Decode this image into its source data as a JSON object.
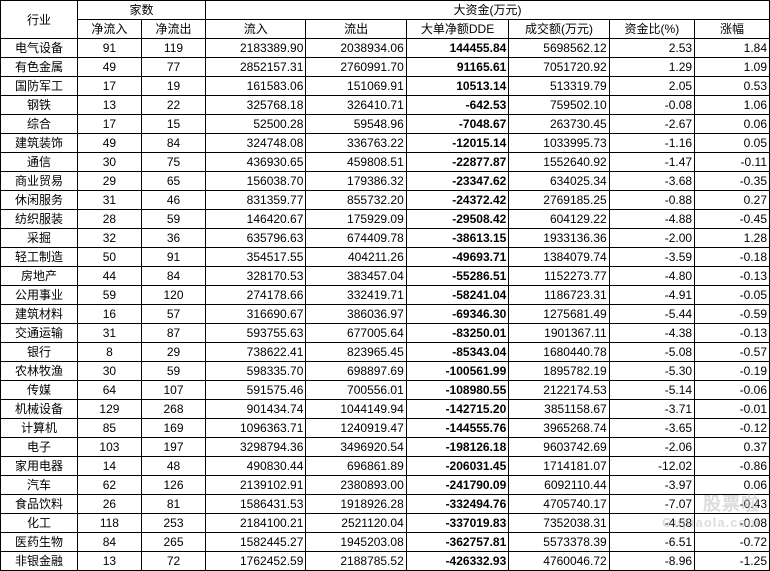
{
  "headers": {
    "group1": "家数",
    "group2": "大资金(万元)",
    "industry": "行业",
    "netIn": "净流入",
    "netOut": "净流出",
    "flowIn": "流入",
    "flowOut": "流出",
    "dde": "大单净额DDE",
    "turnover": "成交额(万元)",
    "ratio": "资金比(%)",
    "change": "涨幅"
  },
  "rows": [
    {
      "industry": "电气设备",
      "netIn": "91",
      "netOut": "119",
      "flowIn": "2183389.90",
      "flowOut": "2038934.06",
      "dde": "144455.84",
      "turnover": "5698562.12",
      "ratio": "2.53",
      "change": "1.84"
    },
    {
      "industry": "有色金属",
      "netIn": "49",
      "netOut": "77",
      "flowIn": "2852157.31",
      "flowOut": "2760991.70",
      "dde": "91165.61",
      "turnover": "7051720.92",
      "ratio": "1.29",
      "change": "1.09"
    },
    {
      "industry": "国防军工",
      "netIn": "17",
      "netOut": "19",
      "flowIn": "161583.06",
      "flowOut": "151069.91",
      "dde": "10513.14",
      "turnover": "513319.79",
      "ratio": "2.05",
      "change": "0.53"
    },
    {
      "industry": "钢铁",
      "netIn": "13",
      "netOut": "22",
      "flowIn": "325768.18",
      "flowOut": "326410.71",
      "dde": "-642.53",
      "turnover": "759502.10",
      "ratio": "-0.08",
      "change": "1.06"
    },
    {
      "industry": "综合",
      "netIn": "17",
      "netOut": "15",
      "flowIn": "52500.28",
      "flowOut": "59548.96",
      "dde": "-7048.67",
      "turnover": "263730.45",
      "ratio": "-2.67",
      "change": "0.06"
    },
    {
      "industry": "建筑装饰",
      "netIn": "49",
      "netOut": "84",
      "flowIn": "324748.08",
      "flowOut": "336763.22",
      "dde": "-12015.14",
      "turnover": "1033995.73",
      "ratio": "-1.16",
      "change": "0.05"
    },
    {
      "industry": "通信",
      "netIn": "30",
      "netOut": "75",
      "flowIn": "436930.65",
      "flowOut": "459808.51",
      "dde": "-22877.87",
      "turnover": "1552640.92",
      "ratio": "-1.47",
      "change": "-0.11"
    },
    {
      "industry": "商业贸易",
      "netIn": "29",
      "netOut": "65",
      "flowIn": "156038.70",
      "flowOut": "179386.32",
      "dde": "-23347.62",
      "turnover": "634025.34",
      "ratio": "-3.68",
      "change": "-0.35"
    },
    {
      "industry": "休闲服务",
      "netIn": "31",
      "netOut": "46",
      "flowIn": "831359.77",
      "flowOut": "855732.20",
      "dde": "-24372.42",
      "turnover": "2769185.25",
      "ratio": "-0.88",
      "change": "0.27"
    },
    {
      "industry": "纺织服装",
      "netIn": "28",
      "netOut": "59",
      "flowIn": "146420.67",
      "flowOut": "175929.09",
      "dde": "-29508.42",
      "turnover": "604129.22",
      "ratio": "-4.88",
      "change": "-0.45"
    },
    {
      "industry": "采掘",
      "netIn": "32",
      "netOut": "36",
      "flowIn": "635796.63",
      "flowOut": "674409.78",
      "dde": "-38613.15",
      "turnover": "1933136.36",
      "ratio": "-2.00",
      "change": "1.28"
    },
    {
      "industry": "轻工制造",
      "netIn": "50",
      "netOut": "91",
      "flowIn": "354517.55",
      "flowOut": "404211.26",
      "dde": "-49693.71",
      "turnover": "1384079.74",
      "ratio": "-3.59",
      "change": "-0.18"
    },
    {
      "industry": "房地产",
      "netIn": "44",
      "netOut": "84",
      "flowIn": "328170.53",
      "flowOut": "383457.04",
      "dde": "-55286.51",
      "turnover": "1152273.77",
      "ratio": "-4.80",
      "change": "-0.13"
    },
    {
      "industry": "公用事业",
      "netIn": "59",
      "netOut": "120",
      "flowIn": "274178.66",
      "flowOut": "332419.71",
      "dde": "-58241.04",
      "turnover": "1186723.31",
      "ratio": "-4.91",
      "change": "-0.05"
    },
    {
      "industry": "建筑材料",
      "netIn": "16",
      "netOut": "57",
      "flowIn": "316690.67",
      "flowOut": "386036.97",
      "dde": "-69346.30",
      "turnover": "1275681.49",
      "ratio": "-5.44",
      "change": "-0.59"
    },
    {
      "industry": "交通运输",
      "netIn": "31",
      "netOut": "87",
      "flowIn": "593755.63",
      "flowOut": "677005.64",
      "dde": "-83250.01",
      "turnover": "1901367.11",
      "ratio": "-4.38",
      "change": "-0.13"
    },
    {
      "industry": "银行",
      "netIn": "8",
      "netOut": "29",
      "flowIn": "738622.41",
      "flowOut": "823965.45",
      "dde": "-85343.04",
      "turnover": "1680440.78",
      "ratio": "-5.08",
      "change": "-0.57"
    },
    {
      "industry": "农林牧渔",
      "netIn": "30",
      "netOut": "59",
      "flowIn": "598335.70",
      "flowOut": "698897.69",
      "dde": "-100561.99",
      "turnover": "1895782.19",
      "ratio": "-5.30",
      "change": "-0.19"
    },
    {
      "industry": "传媒",
      "netIn": "64",
      "netOut": "107",
      "flowIn": "591575.46",
      "flowOut": "700556.01",
      "dde": "-108980.55",
      "turnover": "2122174.53",
      "ratio": "-5.14",
      "change": "-0.06"
    },
    {
      "industry": "机械设备",
      "netIn": "129",
      "netOut": "268",
      "flowIn": "901434.74",
      "flowOut": "1044149.94",
      "dde": "-142715.20",
      "turnover": "3851158.67",
      "ratio": "-3.71",
      "change": "-0.01"
    },
    {
      "industry": "计算机",
      "netIn": "85",
      "netOut": "169",
      "flowIn": "1096363.71",
      "flowOut": "1240919.47",
      "dde": "-144555.76",
      "turnover": "3965268.74",
      "ratio": "-3.65",
      "change": "-0.12"
    },
    {
      "industry": "电子",
      "netIn": "103",
      "netOut": "197",
      "flowIn": "3298794.36",
      "flowOut": "3496920.54",
      "dde": "-198126.18",
      "turnover": "9603742.69",
      "ratio": "-2.06",
      "change": "0.37"
    },
    {
      "industry": "家用电器",
      "netIn": "14",
      "netOut": "48",
      "flowIn": "490830.44",
      "flowOut": "696861.89",
      "dde": "-206031.45",
      "turnover": "1714181.07",
      "ratio": "-12.02",
      "change": "-0.86"
    },
    {
      "industry": "汽车",
      "netIn": "62",
      "netOut": "126",
      "flowIn": "2139102.91",
      "flowOut": "2380893.00",
      "dde": "-241790.09",
      "turnover": "6092110.44",
      "ratio": "-3.97",
      "change": "0.06"
    },
    {
      "industry": "食品饮料",
      "netIn": "26",
      "netOut": "81",
      "flowIn": "1586431.53",
      "flowOut": "1918926.28",
      "dde": "-332494.76",
      "turnover": "4705740.17",
      "ratio": "-7.07",
      "change": "-0.43"
    },
    {
      "industry": "化工",
      "netIn": "118",
      "netOut": "253",
      "flowIn": "2184100.21",
      "flowOut": "2521120.04",
      "dde": "-337019.83",
      "turnover": "7352038.31",
      "ratio": "-4.58",
      "change": "-0.08"
    },
    {
      "industry": "医药生物",
      "netIn": "84",
      "netOut": "265",
      "flowIn": "1582445.27",
      "flowOut": "1945203.08",
      "dde": "-362757.81",
      "turnover": "5573378.39",
      "ratio": "-6.51",
      "change": "-0.72"
    },
    {
      "industry": "非银金融",
      "netIn": "13",
      "netOut": "72",
      "flowIn": "1762452.59",
      "flowOut": "2188785.52",
      "dde": "-426332.93",
      "turnover": "4760046.72",
      "ratio": "-8.96",
      "change": "-1.25"
    }
  ],
  "watermark": {
    "cn": "股票啦",
    "url": "Gupiaola.com"
  }
}
